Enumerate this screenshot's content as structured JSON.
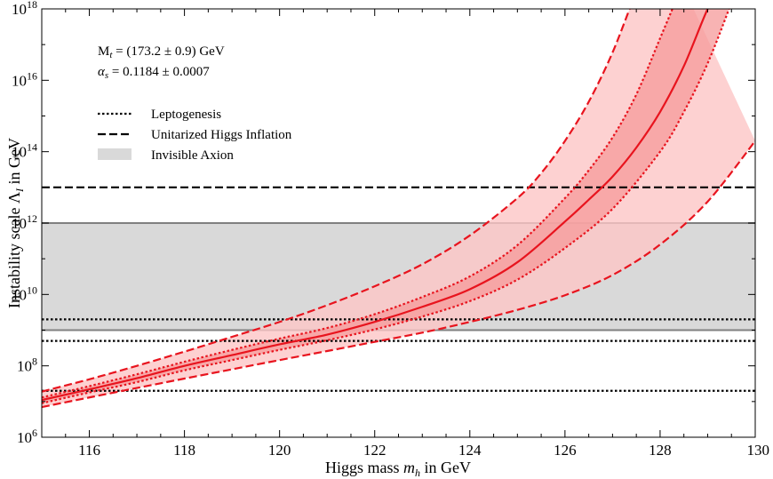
{
  "chart_data": {
    "type": "line",
    "xlabel_prefix": "Higgs mass ",
    "xlabel_var": "m",
    "xlabel_sub": "h",
    "xlabel_suffix": " in GeV",
    "ylabel_prefix": "Instability scale Λ",
    "ylabel_sub": "I",
    "ylabel_suffix": " in GeV",
    "xlim": [
      115,
      130
    ],
    "ylim_log10": [
      6,
      18
    ],
    "y_scale": "log",
    "x_ticks": [
      116,
      118,
      120,
      122,
      124,
      126,
      128,
      130
    ],
    "y_ticks": [
      {
        "base": "10",
        "exp": "6",
        "value": 1000000.0
      },
      {
        "base": "10",
        "exp": "8",
        "value": 100000000.0
      },
      {
        "base": "10",
        "exp": "10",
        "value": 10000000000.0
      },
      {
        "base": "10",
        "exp": "12",
        "value": 1000000000000.0
      },
      {
        "base": "10",
        "exp": "14",
        "value": 100000000000000.0
      },
      {
        "base": "10",
        "exp": "16",
        "value": 1e+16
      },
      {
        "base": "10",
        "exp": "18",
        "value": 1e+18
      }
    ],
    "annotations": {
      "mt_label_main": "M",
      "mt_label_sub": "t",
      "mt_value": " = (173.2 ± 0.9) GeV",
      "alpha_label_main": "α",
      "alpha_label_sub": "s",
      "alpha_value": " =  0.1184  ±  0.0007"
    },
    "legend": [
      {
        "label": "Leptogenesis",
        "style": "dotted"
      },
      {
        "label": "Unitarized Higgs Inflation",
        "style": "dashed"
      },
      {
        "label": "Invisible Axion",
        "style": "band"
      }
    ],
    "horizontal_lines": [
      {
        "y": 20000000.0,
        "style": "dotted"
      },
      {
        "y": 500000000.0,
        "style": "dotted"
      },
      {
        "y": 2000000000.0,
        "style": "dotted"
      },
      {
        "y": 10000000000000.0,
        "style": "dashed"
      }
    ],
    "axion_band": [
      1000000000.0,
      1000000000000.0
    ],
    "series": [
      {
        "role": "central",
        "x": [
          115,
          116,
          117,
          118,
          119,
          120,
          121,
          122,
          123,
          124,
          125,
          126,
          126.5,
          127,
          127.5,
          128,
          128.5,
          129,
          129.4
        ],
        "y": [
          11000000.0,
          22000000.0,
          45000000.0,
          100000000.0,
          200000000.0,
          400000000.0,
          750000000.0,
          1700000000.0,
          4500000000.0,
          14000000000.0,
          80000000000.0,
          1100000000000.0,
          4500000000000.0,
          20000000000000.0,
          130000000000000.0,
          1300000000000000.0,
          2.5e+16,
          1e+18,
          1e+19
        ]
      },
      {
        "role": "inner-upper",
        "x": [
          115,
          116,
          117,
          118,
          119,
          120,
          121,
          122,
          123,
          124,
          125,
          126,
          126.5,
          127,
          127.5,
          128,
          128.4,
          128.8
        ],
        "y": [
          13000000.0,
          27000000.0,
          58000000.0,
          130000000.0,
          280000000.0,
          580000000.0,
          1150000000.0,
          2800000000.0,
          8500000000.0,
          32000000000.0,
          240000000000.0,
          5000000000000.0,
          30000000000000.0,
          250000000000000.0,
          4000000000000000.0,
          1.5e+17,
          3e+18,
          1e+20
        ]
      },
      {
        "role": "inner-lower",
        "x": [
          115,
          116,
          117,
          118,
          119,
          120,
          121,
          122,
          123,
          124,
          125,
          126,
          127,
          128,
          128.5,
          129,
          129.5,
          130
        ],
        "y": [
          9000000.0,
          18000000.0,
          35000000.0,
          75000000.0,
          145000000.0,
          280000000.0,
          520000000.0,
          1050000000.0,
          2400000000.0,
          6500000000.0,
          26000000000.0,
          200000000000.0,
          2500000000000.0,
          100000000000000.0,
          1300000000000000.0,
          3e+16,
          1.5e+18,
          1e+20
        ]
      },
      {
        "role": "outer-upper",
        "x": [
          115,
          116,
          117,
          118,
          119,
          120,
          121,
          122,
          123,
          124,
          125,
          125.5,
          126,
          126.5,
          127,
          127.5,
          128
        ],
        "y": [
          19000000.0,
          42000000.0,
          100000000.0,
          250000000.0,
          650000000.0,
          1700000000.0,
          5000000000.0,
          17000000000.0,
          70000000000.0,
          450000000000.0,
          5000000000000.0,
          25000000000000.0,
          200000000000000.0,
          2500000000000000.0,
          6e+16,
          3e+18,
          1e+20
        ]
      },
      {
        "role": "outer-lower",
        "x": [
          115,
          116,
          117,
          118,
          119,
          120,
          121,
          122,
          123,
          124,
          125,
          126,
          127,
          128,
          129,
          130
        ],
        "y": [
          7000000.0,
          13000000.0,
          24000000.0,
          44000000.0,
          80000000.0,
          145000000.0,
          260000000.0,
          470000000.0,
          850000000.0,
          1700000000.0,
          3700000000.0,
          9500000000.0,
          35000000000.0,
          250000000000.0,
          4000000000000.0,
          200000000000000.0
        ]
      }
    ],
    "colors": {
      "outer_band": "#fcc6c6",
      "inner_band": "#f69a9a",
      "curve": "#e8141e",
      "axion_band": "#d9d9d9",
      "axion_edge": "#808080"
    }
  }
}
